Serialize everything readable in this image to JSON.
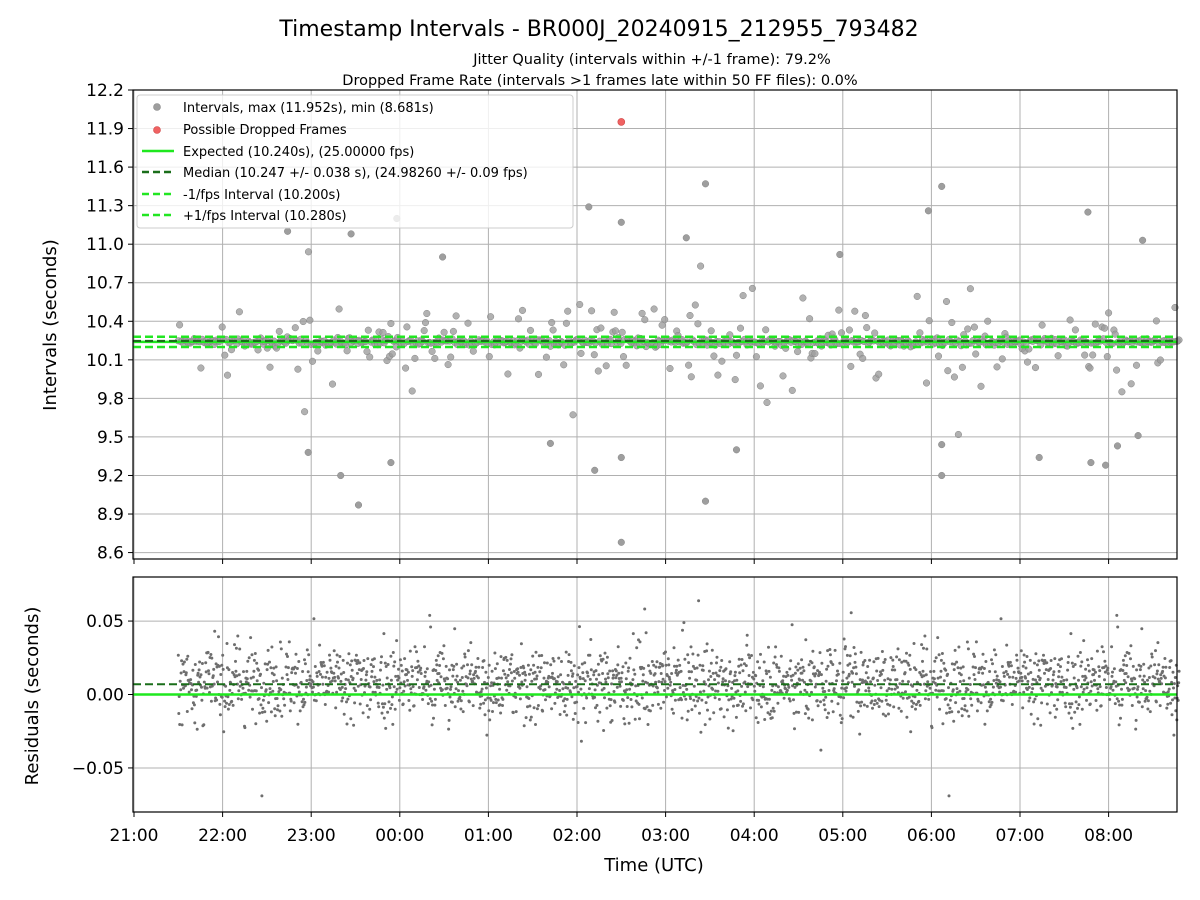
{
  "chart_data": [
    {
      "type": "scatter",
      "title": "Timestamp Intervals - BR000J_20240915_212955_793482",
      "subtitle_1": "Jitter Quality (intervals within +/-1 frame): 79.2%",
      "subtitle_2": "Dropped Frame Rate (intervals >1 frames late within 50 FF files): 0.0%",
      "ylabel": "Intervals (seconds)",
      "xlim": [
        "21:00",
        "08:48"
      ],
      "ylim": [
        8.55,
        12.2
      ],
      "yticks": [
        "8.6",
        "8.9",
        "9.2",
        "9.5",
        "9.8",
        "10.1",
        "10.4",
        "10.7",
        "11.0",
        "11.3",
        "11.6",
        "11.9",
        "12.2"
      ],
      "grid": true,
      "legend_position": "upper-left",
      "legend": [
        "Intervals, max (11.952s), min (8.681s)",
        "Possible Dropped Frames",
        "Expected (10.240s), (25.00000 fps)",
        "Median (10.247 +/- 0.038 s), (24.98260 +/- 0.09 fps)",
        "-1/fps Interval (10.200s)",
        "+1/fps Interval (10.280s)"
      ],
      "expected_interval": 10.24,
      "median_interval": 10.247,
      "minus_one_frame_interval": 10.2,
      "plus_one_frame_interval": 10.28,
      "series": [
        {
          "name": "Intervals, max (11.952s), min (8.681s)",
          "color": "#9e9e9e",
          "x_start": "21:30",
          "x_end": "08:48",
          "typical_range": [
            10.2,
            10.28
          ],
          "max": 11.952,
          "min": 8.681,
          "outliers": [
            {
              "x": "22:44",
              "y": 11.1
            },
            {
              "x": "23:27",
              "y": 11.08
            },
            {
              "x": "23:58",
              "y": 11.2
            },
            {
              "x": "00:29",
              "y": 10.9
            },
            {
              "x": "02:08",
              "y": 11.29
            },
            {
              "x": "02:30",
              "y": 11.17
            },
            {
              "x": "03:14",
              "y": 11.05
            },
            {
              "x": "03:27",
              "y": 11.47
            },
            {
              "x": "04:58",
              "y": 10.92
            },
            {
              "x": "05:58",
              "y": 11.26
            },
            {
              "x": "06:07",
              "y": 11.45
            },
            {
              "x": "07:46",
              "y": 11.25
            },
            {
              "x": "08:23",
              "y": 11.03
            },
            {
              "x": "22:58",
              "y": 9.38
            },
            {
              "x": "23:20",
              "y": 9.2
            },
            {
              "x": "23:32",
              "y": 8.97
            },
            {
              "x": "23:54",
              "y": 9.3
            },
            {
              "x": "02:12",
              "y": 9.24
            },
            {
              "x": "02:30",
              "y": 9.34
            },
            {
              "x": "02:30",
              "y": 8.68
            },
            {
              "x": "03:27",
              "y": 9.0
            },
            {
              "x": "03:48",
              "y": 9.4
            },
            {
              "x": "06:07",
              "y": 9.2
            },
            {
              "x": "06:07",
              "y": 9.44
            },
            {
              "x": "07:13",
              "y": 9.34
            },
            {
              "x": "07:48",
              "y": 9.3
            },
            {
              "x": "07:58",
              "y": 9.28
            },
            {
              "x": "08:06",
              "y": 9.43
            },
            {
              "x": "08:20",
              "y": 9.51
            },
            {
              "x": "01:42",
              "y": 9.45
            }
          ]
        },
        {
          "name": "Possible Dropped Frames",
          "color": "#f06262",
          "points": [
            {
              "x": "02:30",
              "y": 11.952
            }
          ]
        }
      ]
    },
    {
      "type": "scatter",
      "xlabel": "Time (UTC)",
      "ylabel": "Residuals (seconds)",
      "xticks": [
        "21:00",
        "22:00",
        "23:00",
        "00:00",
        "01:00",
        "02:00",
        "03:00",
        "04:00",
        "05:00",
        "06:00",
        "07:00",
        "08:00"
      ],
      "yticks": [
        "−0.05",
        "0.00",
        "0.05"
      ],
      "ylim": [
        -0.08,
        0.08
      ],
      "grid": true,
      "expected_residual": 0.0,
      "median_residual": 0.007,
      "series": [
        {
          "color": "#6e6e6e",
          "x_start": "21:30",
          "x_end": "08:48",
          "typical_range": [
            -0.03,
            0.04
          ]
        }
      ]
    }
  ],
  "colors": {
    "intervals": "#9e9e9e",
    "dropped": "#f06262",
    "expected": "#1fe81f",
    "median": "#1a6e1a",
    "fps_bounds": "#22e622",
    "residual_points": "#6e6e6e",
    "grid": "#b0b0b0"
  }
}
